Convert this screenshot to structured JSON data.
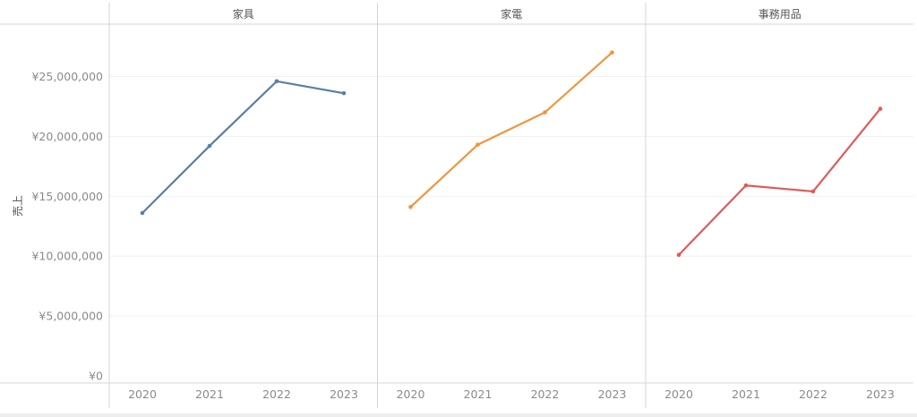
{
  "chart_data": {
    "type": "line",
    "ylabel": "売上",
    "ylim": [
      0,
      28000000
    ],
    "yticks": [
      0,
      5000000,
      10000000,
      15000000,
      20000000,
      25000000
    ],
    "ytick_labels": [
      "¥0",
      "¥5,000,000",
      "¥10,000,000",
      "¥15,000,000",
      "¥20,000,000",
      "¥25,000,000"
    ],
    "x": [
      "2020",
      "2021",
      "2022",
      "2023"
    ],
    "grid": true,
    "panels": [
      {
        "title": "家具",
        "color": "#5b7fa6",
        "values": [
          13600000,
          19200000,
          24600000,
          23600000
        ]
      },
      {
        "title": "家電",
        "color": "#f0953e",
        "values": [
          14100000,
          19300000,
          22000000,
          27000000
        ]
      },
      {
        "title": "事務用品",
        "color": "#e05a58",
        "values": [
          10100000,
          15900000,
          15400000,
          22300000
        ]
      }
    ]
  }
}
